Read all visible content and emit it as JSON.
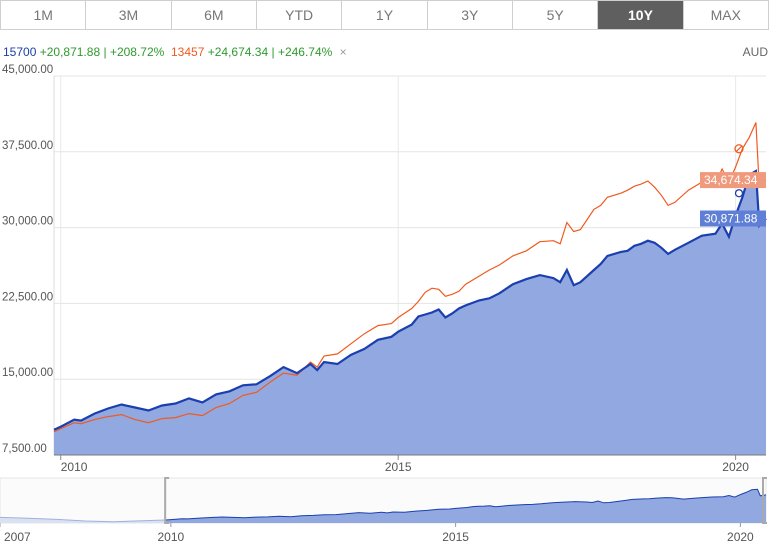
{
  "tabs": [
    {
      "label": "1M",
      "active": false
    },
    {
      "label": "3M",
      "active": false
    },
    {
      "label": "6M",
      "active": false
    },
    {
      "label": "YTD",
      "active": false
    },
    {
      "label": "1Y",
      "active": false
    },
    {
      "label": "3Y",
      "active": false
    },
    {
      "label": "5Y",
      "active": false
    },
    {
      "label": "10Y",
      "active": true
    },
    {
      "label": "MAX",
      "active": false
    }
  ],
  "legend": {
    "series1": {
      "code": "15700",
      "change": "+20,871.88",
      "sep": "|",
      "pct": "+208.72%"
    },
    "series2": {
      "code": "13457",
      "change": "+24,674.34",
      "sep": "|",
      "pct": "+246.74%"
    },
    "close_label": "×"
  },
  "currency": "AUD",
  "colors": {
    "series1": "#1b3fae",
    "series1_fill": "#92a8e0",
    "series2": "#f05a1f",
    "series2_label_bg": "#ef9a7c",
    "series1_label_bg": "#5f7fd6"
  },
  "chart_data": {
    "type": "area",
    "ylim": [
      7500,
      45000
    ],
    "yticks": [
      "7,500.00",
      "15,000.00",
      "22,500.00",
      "30,000.00",
      "37,500.00",
      "45,000.00"
    ],
    "ytick_values": [
      7500,
      15000,
      22500,
      30000,
      37500,
      45000
    ],
    "xticks": [
      "2010",
      "2015",
      "2020"
    ],
    "xtick_values": [
      2010,
      2015,
      2020
    ],
    "xlim": [
      2009.9,
      2020.45
    ],
    "last_labels": {
      "series1": "30,871.88",
      "series2": "34,674.34"
    },
    "series": [
      {
        "name": "15700",
        "values": [
          [
            2009.9,
            10000
          ],
          [
            2010.0,
            10300
          ],
          [
            2010.2,
            11000
          ],
          [
            2010.3,
            10900
          ],
          [
            2010.5,
            11600
          ],
          [
            2010.7,
            12100
          ],
          [
            2010.9,
            12500
          ],
          [
            2011.1,
            12200
          ],
          [
            2011.3,
            11900
          ],
          [
            2011.5,
            12400
          ],
          [
            2011.7,
            12600
          ],
          [
            2011.9,
            13100
          ],
          [
            2012.1,
            12700
          ],
          [
            2012.3,
            13500
          ],
          [
            2012.5,
            13800
          ],
          [
            2012.7,
            14400
          ],
          [
            2012.9,
            14500
          ],
          [
            2013.1,
            15300
          ],
          [
            2013.3,
            16200
          ],
          [
            2013.5,
            15600
          ],
          [
            2013.7,
            16500
          ],
          [
            2013.8,
            15900
          ],
          [
            2013.9,
            16700
          ],
          [
            2014.1,
            16500
          ],
          [
            2014.3,
            17400
          ],
          [
            2014.5,
            18000
          ],
          [
            2014.7,
            18900
          ],
          [
            2014.9,
            19200
          ],
          [
            2015.0,
            19700
          ],
          [
            2015.2,
            20400
          ],
          [
            2015.3,
            21200
          ],
          [
            2015.4,
            21400
          ],
          [
            2015.5,
            21600
          ],
          [
            2015.6,
            21900
          ],
          [
            2015.7,
            21100
          ],
          [
            2015.8,
            21500
          ],
          [
            2015.9,
            22000
          ],
          [
            2016.0,
            22300
          ],
          [
            2016.2,
            22800
          ],
          [
            2016.35,
            23000
          ],
          [
            2016.5,
            23500
          ],
          [
            2016.7,
            24400
          ],
          [
            2016.9,
            24900
          ],
          [
            2017.1,
            25300
          ],
          [
            2017.3,
            25000
          ],
          [
            2017.4,
            24600
          ],
          [
            2017.5,
            25800
          ],
          [
            2017.6,
            24300
          ],
          [
            2017.7,
            24600
          ],
          [
            2017.9,
            25800
          ],
          [
            2018.0,
            26400
          ],
          [
            2018.1,
            27200
          ],
          [
            2018.3,
            27600
          ],
          [
            2018.4,
            27700
          ],
          [
            2018.5,
            28200
          ],
          [
            2018.6,
            28400
          ],
          [
            2018.7,
            28700
          ],
          [
            2018.8,
            28500
          ],
          [
            2018.9,
            28000
          ],
          [
            2019.0,
            27400
          ],
          [
            2019.1,
            27800
          ],
          [
            2019.3,
            28500
          ],
          [
            2019.5,
            29200
          ],
          [
            2019.7,
            29400
          ],
          [
            2019.8,
            30400
          ],
          [
            2019.9,
            29100
          ],
          [
            2020.0,
            31200
          ],
          [
            2020.1,
            33000
          ],
          [
            2020.2,
            35200
          ],
          [
            2020.3,
            35600
          ],
          [
            2020.35,
            30200
          ],
          [
            2020.45,
            30900
          ]
        ]
      },
      {
        "name": "13457",
        "values": [
          [
            2009.9,
            9800
          ],
          [
            2010.0,
            10100
          ],
          [
            2010.2,
            10700
          ],
          [
            2010.3,
            10600
          ],
          [
            2010.5,
            11000
          ],
          [
            2010.7,
            11300
          ],
          [
            2010.9,
            11500
          ],
          [
            2011.1,
            11000
          ],
          [
            2011.3,
            10700
          ],
          [
            2011.5,
            11100
          ],
          [
            2011.7,
            11200
          ],
          [
            2011.9,
            11600
          ],
          [
            2012.1,
            11400
          ],
          [
            2012.3,
            12200
          ],
          [
            2012.5,
            12600
          ],
          [
            2012.7,
            13400
          ],
          [
            2012.9,
            13700
          ],
          [
            2013.1,
            14700
          ],
          [
            2013.3,
            15600
          ],
          [
            2013.5,
            15400
          ],
          [
            2013.7,
            16700
          ],
          [
            2013.8,
            16200
          ],
          [
            2013.9,
            17300
          ],
          [
            2014.1,
            17500
          ],
          [
            2014.3,
            18500
          ],
          [
            2014.5,
            19500
          ],
          [
            2014.7,
            20300
          ],
          [
            2014.9,
            20500
          ],
          [
            2015.0,
            21100
          ],
          [
            2015.2,
            22000
          ],
          [
            2015.3,
            22700
          ],
          [
            2015.4,
            23600
          ],
          [
            2015.5,
            24000
          ],
          [
            2015.6,
            23900
          ],
          [
            2015.7,
            23200
          ],
          [
            2015.8,
            23400
          ],
          [
            2015.9,
            23700
          ],
          [
            2016.0,
            24400
          ],
          [
            2016.2,
            25200
          ],
          [
            2016.35,
            25800
          ],
          [
            2016.5,
            26300
          ],
          [
            2016.7,
            27200
          ],
          [
            2016.9,
            27700
          ],
          [
            2017.1,
            28600
          ],
          [
            2017.3,
            28700
          ],
          [
            2017.4,
            28400
          ],
          [
            2017.5,
            30500
          ],
          [
            2017.6,
            29600
          ],
          [
            2017.7,
            29800
          ],
          [
            2017.9,
            31800
          ],
          [
            2018.0,
            32200
          ],
          [
            2018.1,
            33000
          ],
          [
            2018.3,
            33400
          ],
          [
            2018.4,
            33700
          ],
          [
            2018.5,
            34100
          ],
          [
            2018.6,
            34300
          ],
          [
            2018.7,
            34600
          ],
          [
            2018.8,
            34000
          ],
          [
            2018.9,
            33200
          ],
          [
            2019.0,
            32200
          ],
          [
            2019.1,
            32500
          ],
          [
            2019.3,
            33700
          ],
          [
            2019.5,
            34500
          ],
          [
            2019.7,
            34300
          ],
          [
            2019.8,
            35800
          ],
          [
            2019.9,
            34500
          ],
          [
            2020.0,
            36000
          ],
          [
            2020.1,
            37800
          ],
          [
            2020.2,
            38900
          ],
          [
            2020.3,
            40400
          ],
          [
            2020.35,
            34000
          ],
          [
            2020.45,
            34700
          ]
        ]
      }
    ],
    "navigator": {
      "xticks": [
        "2007",
        "2010",
        "2015",
        "2020"
      ],
      "xtick_values": [
        2007,
        2010,
        2015,
        2020
      ],
      "xlim": [
        2007,
        2020.45
      ]
    }
  }
}
